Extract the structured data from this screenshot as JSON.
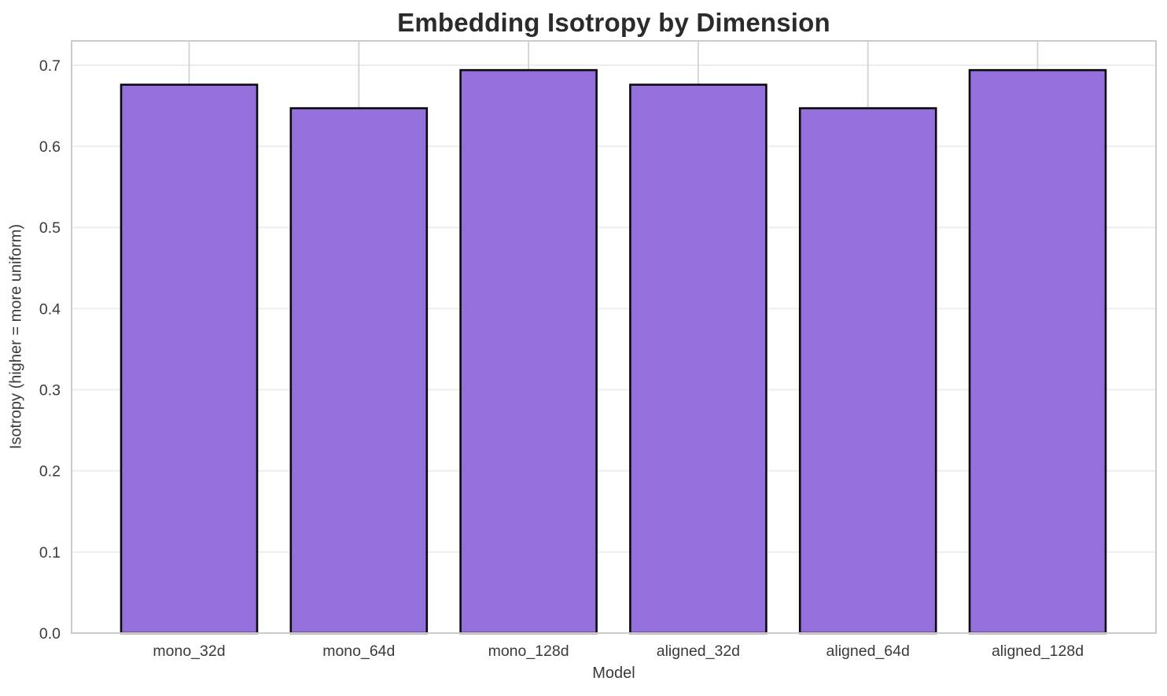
{
  "chart_data": {
    "type": "bar",
    "title": "Embedding Isotropy by Dimension",
    "xlabel": "Model",
    "ylabel": "Isotropy (higher = more uniform)",
    "categories": [
      "mono_32d",
      "mono_64d",
      "mono_128d",
      "aligned_32d",
      "aligned_64d",
      "aligned_128d"
    ],
    "values": [
      0.676,
      0.647,
      0.694,
      0.676,
      0.647,
      0.694
    ],
    "ylim": [
      0.0,
      0.73
    ],
    "yticks": [
      0.0,
      0.1,
      0.2,
      0.3,
      0.4,
      0.5,
      0.6,
      0.7
    ],
    "grid": true,
    "legend": "none",
    "colors": {
      "bar_fill": "#9370DB",
      "bar_edge": "#0a0a0a",
      "grid_horizontal": "#ececec",
      "grid_vertical": "#d2d2d2",
      "spine": "#cbcbcb",
      "tick_text": "#3a3a3a",
      "title_text": "#2b2b2b",
      "axis_label_text": "#3a3a3a",
      "background": "#ffffff"
    }
  }
}
